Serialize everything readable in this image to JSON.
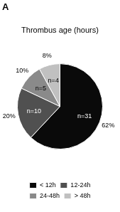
{
  "chart_data": {
    "type": "pie",
    "title": "Thrombus age (hours)",
    "annotations": [
      "A"
    ],
    "categories": [
      "< 12h",
      "12-24h",
      "24-48h",
      "> 48h"
    ],
    "values": [
      62,
      20,
      10,
      8
    ],
    "value_labels": [
      "62%",
      "20%",
      "10%",
      "8%"
    ],
    "counts": [
      31,
      10,
      5,
      4
    ],
    "count_labels": [
      "n=31",
      "n=10",
      "n=5",
      "n=4"
    ],
    "colors": [
      "#0a0a0a",
      "#505050",
      "#8a8a8a",
      "#c0c0c0"
    ],
    "legend": "bottom",
    "data_labels": true
  }
}
